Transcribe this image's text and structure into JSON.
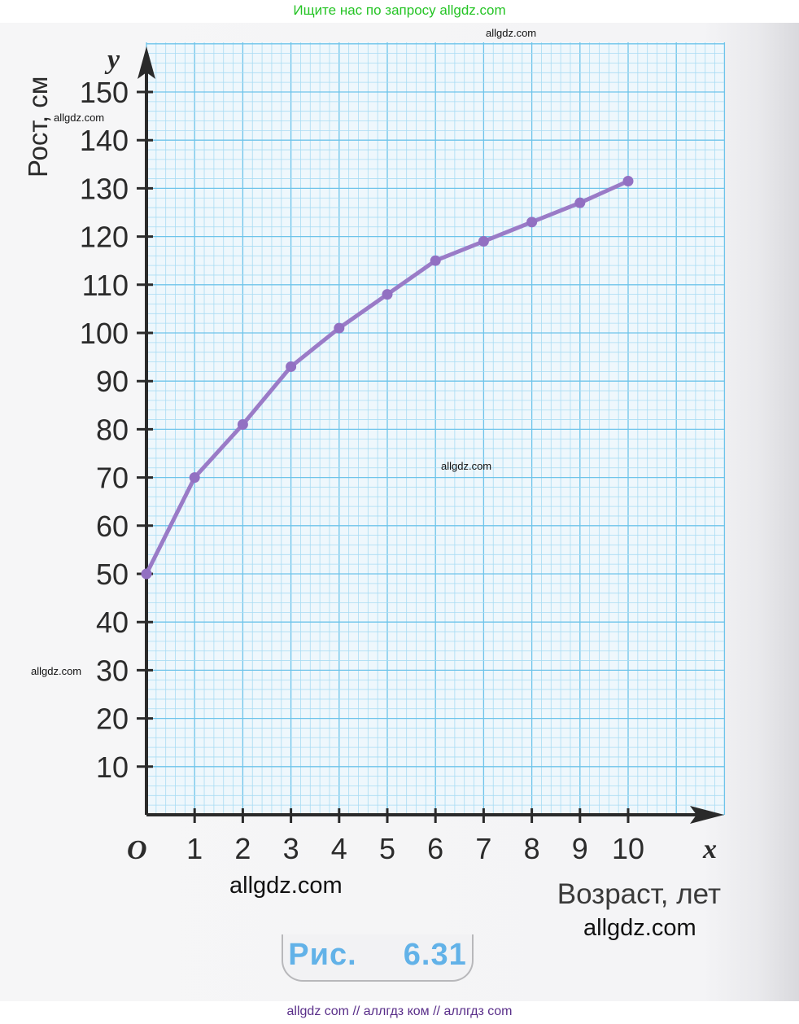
{
  "banner": "Ищите нас по запросу allgdz.com",
  "watermarks": {
    "w1": "allgdz.com",
    "w2": "allgdz.com",
    "w3": "allgdz.com",
    "w4": "allgdz.com",
    "w5": "allgdz.com",
    "w6": "allgdz.com"
  },
  "footer": "allgdz com  //  аллгдз ком  //  аллгдз com",
  "figure_caption": {
    "label": "Рис.",
    "number": "6.31"
  },
  "colors": {
    "grid_fine": "#a9dcf3",
    "grid_major": "#6ec4ea",
    "line": "#9a7bc7",
    "marker": "#9270c2",
    "axis": "#2a2a2a"
  },
  "chart_data": {
    "type": "line",
    "ylabel": "Рост, см",
    "xlabel": "Возраст, лет",
    "x_axis_letter": "x",
    "y_axis_letter": "y",
    "origin_label": "O",
    "xlim": [
      0,
      12
    ],
    "ylim": [
      0,
      160
    ],
    "x_ticks": [
      1,
      2,
      3,
      4,
      5,
      6,
      7,
      8,
      9,
      10
    ],
    "y_ticks": [
      10,
      20,
      30,
      40,
      50,
      60,
      70,
      80,
      90,
      100,
      110,
      120,
      130,
      140,
      150
    ],
    "grid": true,
    "x": [
      0,
      1,
      2,
      3,
      4,
      5,
      6,
      7,
      8,
      9,
      10
    ],
    "y": [
      50,
      70,
      81,
      93,
      101,
      108,
      115,
      119,
      123,
      127,
      131.5
    ]
  }
}
